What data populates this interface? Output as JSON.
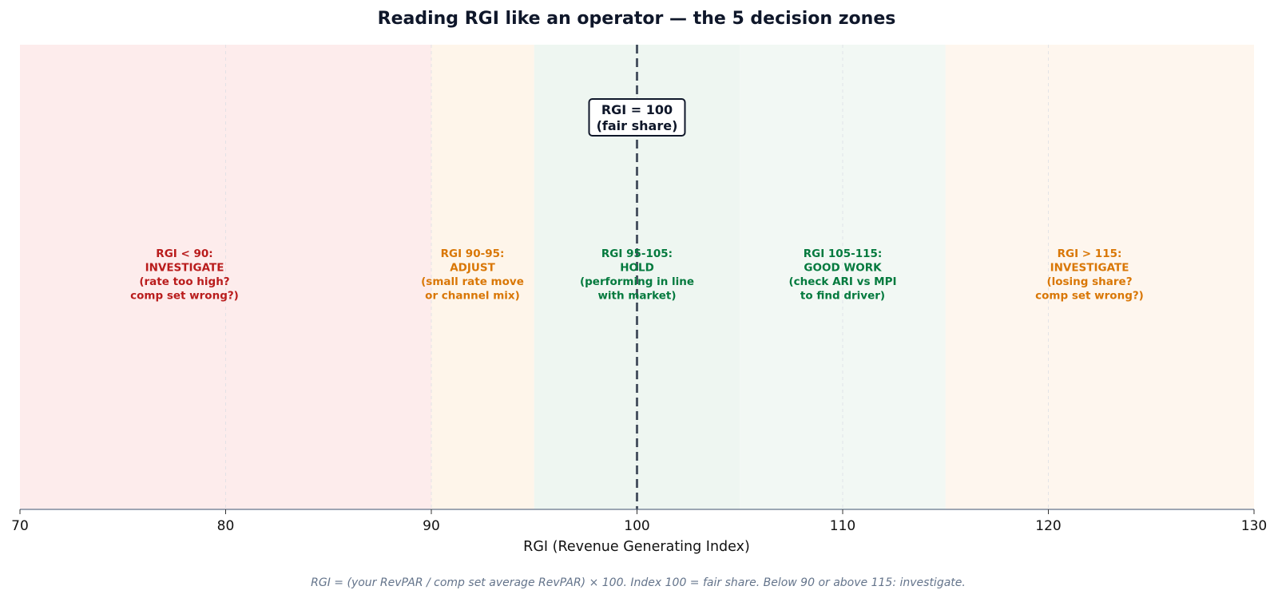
{
  "chart_data": {
    "type": "bar",
    "title": "Reading RGI like an operator — the 5 decision zones",
    "xlabel": "RGI (Revenue Generating Index)",
    "ylabel": "",
    "xlim": [
      70,
      130
    ],
    "xticks": [
      70,
      80,
      90,
      100,
      110,
      120,
      130
    ],
    "grid": true,
    "zones": [
      {
        "range": [
          70,
          90
        ],
        "fill": "#fdecec",
        "text_color": "#b91c1c",
        "label_x": 78,
        "lines": [
          "RGI < 90:",
          "INVESTIGATE",
          "(rate too high?",
          "comp set wrong?)"
        ]
      },
      {
        "range": [
          90,
          95
        ],
        "fill": "#fef5ea",
        "text_color": "#d97706",
        "label_x": 92,
        "lines": [
          "RGI 90-95:",
          "ADJUST",
          "(small rate move",
          "or channel mix)"
        ]
      },
      {
        "range": [
          95,
          105
        ],
        "fill": "#eef6f1",
        "text_color": "#047a3e",
        "label_x": 100,
        "lines": [
          "RGI 95-105:",
          "HOLD",
          "(performing in line",
          "with market)"
        ]
      },
      {
        "range": [
          105,
          115
        ],
        "fill": "#f2f8f4",
        "text_color": "#047a3e",
        "label_x": 110,
        "lines": [
          "RGI 105-115:",
          "GOOD WORK",
          "(check ARI vs MPI",
          "to find driver)"
        ]
      },
      {
        "range": [
          115,
          130
        ],
        "fill": "#fef6ee",
        "text_color": "#d97706",
        "label_x": 122,
        "lines": [
          "RGI > 115:",
          "INVESTIGATE",
          "(losing share?",
          "comp set wrong?)"
        ]
      }
    ],
    "reference_line": {
      "x": 100,
      "color": "#4b5563",
      "lines": [
        "RGI = 100",
        "(fair share)"
      ]
    },
    "footnote": "RGI = (your RevPAR / comp set average RevPAR) × 100. Index 100 = fair share. Below 90 or above 115: investigate."
  }
}
